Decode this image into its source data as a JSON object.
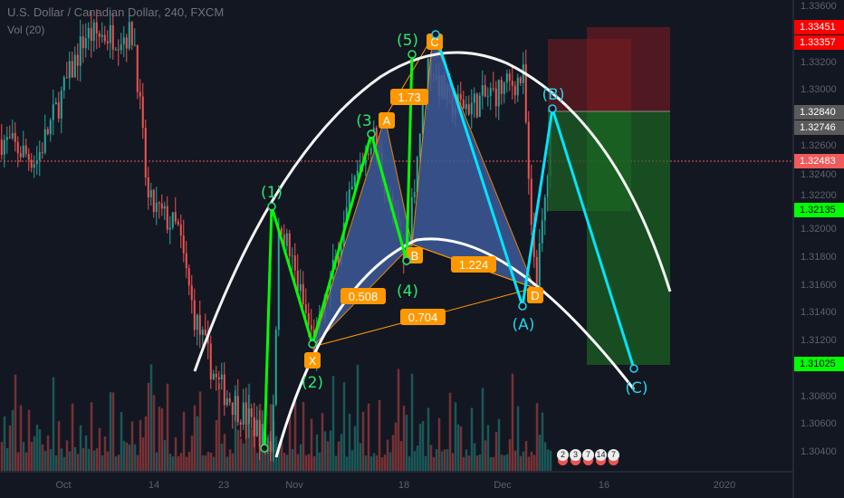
{
  "header": {
    "title": "U.S. Dollar / Canadian Dollar, 240, FXCM",
    "indicator": "Vol (20)"
  },
  "chart_data": {
    "type": "candlestick",
    "title": "U.S. Dollar / Canadian Dollar, 240, FXCM",
    "ylim": [
      1.303,
      1.3365
    ],
    "y_ticks": [
      "1.33600",
      "1.33200",
      "1.33000",
      "1.32600",
      "1.32400",
      "1.32200",
      "1.32000",
      "1.31800",
      "1.31600",
      "1.31400",
      "1.31200",
      "1.30800",
      "1.30600",
      "1.30400"
    ],
    "x_ticks": [
      "Oct",
      "14",
      "23",
      "Nov",
      "18",
      "Dec",
      "16",
      "2020"
    ],
    "price_path": [
      [
        "2019-09-22",
        1.3265
      ],
      [
        "2019-09-27",
        1.325
      ],
      [
        "2019-10-04",
        1.334
      ],
      [
        "2019-10-11",
        1.334
      ],
      [
        "2019-10-13",
        1.322
      ],
      [
        "2019-10-17",
        1.32
      ],
      [
        "2019-10-19",
        1.314
      ],
      [
        "2019-10-22",
        1.309
      ],
      [
        "2019-10-29",
        1.3045
      ],
      [
        "2019-10-30",
        1.321
      ],
      [
        "2019-11-04",
        1.3115
      ],
      [
        "2019-11-10",
        1.323
      ],
      [
        "2019-11-13",
        1.327
      ],
      [
        "2019-11-18",
        1.3175
      ],
      [
        "2019-11-21",
        1.332
      ],
      [
        "2019-11-24",
        1.329
      ],
      [
        "2019-11-27",
        1.329
      ],
      [
        "2019-12-04",
        1.331
      ],
      [
        "2019-12-05",
        1.32
      ],
      [
        "2019-12-06",
        1.3165
      ],
      [
        "2019-12-08",
        1.3265
      ]
    ],
    "current_price": "1.32483",
    "price_labels": [
      {
        "value": "1.33451",
        "color": "#ff0000"
      },
      {
        "value": "1.33357",
        "color": "#ff0000"
      },
      {
        "value": "1.32840",
        "color": "#5a5a5a"
      },
      {
        "value": "1.32746",
        "color": "#5a5a5a"
      },
      {
        "value": "1.32483",
        "color": "#f05a5a"
      },
      {
        "value": "1.32135",
        "color": "#00ff00"
      },
      {
        "value": "1.31025",
        "color": "#00ff00"
      }
    ],
    "elliott_impulse": [
      "(1)",
      "(2)",
      "(3",
      "(4)",
      "(5)"
    ],
    "elliott_correction": [
      "(A)",
      "(B)",
      "(C)"
    ],
    "harmonic_points": [
      "X",
      "A",
      "B",
      "C",
      "D"
    ],
    "harmonic_ratios": [
      "1.73",
      "0.508",
      "1.224",
      "0.704"
    ],
    "colors": {
      "up": "#26a69a",
      "down": "#ef5350",
      "impulse": "#00ff00",
      "correction": "#00e5ff",
      "harmonic": "#ff9800",
      "pattern_fill": "#3d5a99",
      "arc": "#ffffff"
    }
  },
  "event_badges": [
    "2",
    "3",
    "7",
    "14",
    "7"
  ]
}
